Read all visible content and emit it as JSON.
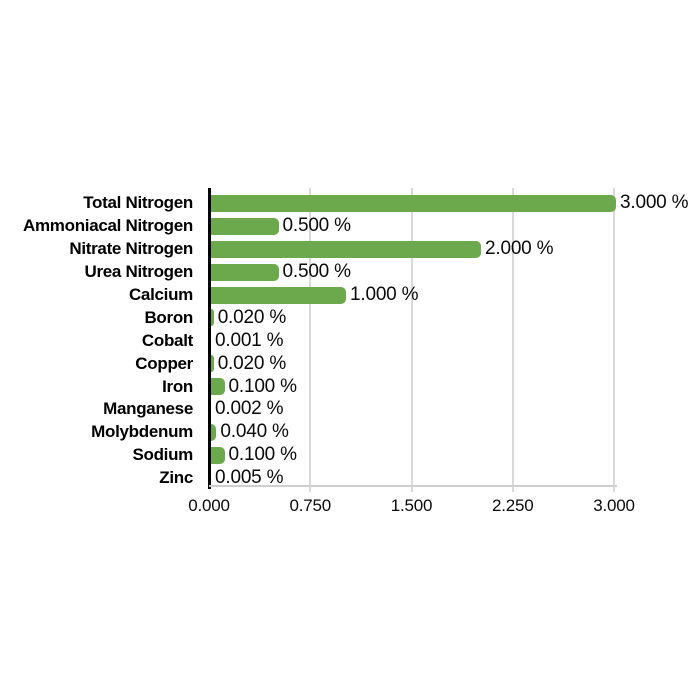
{
  "chart_data": {
    "type": "bar",
    "orientation": "horizontal",
    "title": "",
    "xlabel": "",
    "ylabel": "",
    "xlim": [
      0,
      3.0
    ],
    "grid": true,
    "legend": "none",
    "categories": [
      "Total Nitrogen",
      "Ammoniacal Nitrogen",
      "Nitrate Nitrogen",
      "Urea Nitrogen",
      "Calcium",
      "Boron",
      "Cobalt",
      "Copper",
      "Iron",
      "Manganese",
      "Molybdenum",
      "Sodium",
      "Zinc"
    ],
    "values": [
      3.0,
      0.5,
      2.0,
      0.5,
      1.0,
      0.02,
      0.001,
      0.02,
      0.1,
      0.002,
      0.04,
      0.1,
      0.005
    ],
    "value_labels": [
      "3.000 %",
      "0.500 %",
      "2.000 %",
      "0.500 %",
      "1.000 %",
      "0.020 %",
      "0.001 %",
      "0.020 %",
      "0.100 %",
      "0.002 %",
      "0.040 %",
      "0.100 %",
      "0.005 %"
    ],
    "unit": "%",
    "x_ticks": [
      0,
      0.75,
      1.5,
      2.25,
      3.0
    ],
    "x_tick_labels": [
      "0.000",
      "0.750",
      "1.500",
      "2.250",
      "3.000"
    ],
    "colors": {
      "bar": "#6CA84C",
      "gridline": "#D9D9D9",
      "axis": "#000000",
      "baseline": "#CFCFCF",
      "text": "#000000",
      "background": "#FFFFFF"
    }
  }
}
